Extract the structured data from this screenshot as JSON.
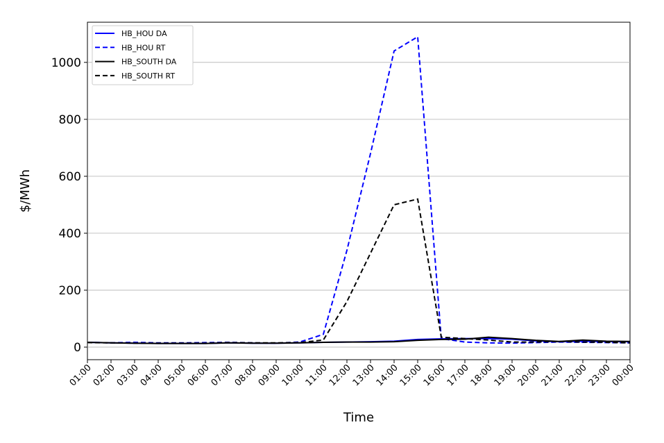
{
  "chart_data": {
    "type": "line",
    "x_label": "Time",
    "y_label": "$/MWh",
    "categories": [
      "01:00",
      "02:00",
      "03:00",
      "04:00",
      "05:00",
      "06:00",
      "07:00",
      "08:00",
      "09:00",
      "10:00",
      "11:00",
      "12:00",
      "13:00",
      "14:00",
      "15:00",
      "16:00",
      "17:00",
      "18:00",
      "19:00",
      "20:00",
      "21:00",
      "22:00",
      "23:00",
      "00:00"
    ],
    "series": [
      {
        "name": "HB_HOU DA",
        "color": "#0000ff",
        "style": "solid",
        "values": [
          17,
          15,
          14,
          13,
          13,
          13,
          15,
          14,
          14,
          15,
          17,
          18,
          19,
          21,
          27,
          29,
          30,
          30,
          28,
          22,
          19,
          21,
          20,
          19
        ]
      },
      {
        "name": "HB_HOU RT",
        "color": "#0000ff",
        "style": "dashed",
        "values": [
          17,
          15,
          17,
          15,
          15,
          16,
          17,
          15,
          14,
          18,
          45,
          340,
          680,
          1040,
          1090,
          30,
          18,
          15,
          14,
          16,
          18,
          17,
          16,
          15
        ]
      },
      {
        "name": "HB_SOUTH DA",
        "color": "#000000",
        "style": "solid",
        "values": [
          17,
          15,
          14,
          13,
          13,
          13,
          15,
          14,
          14,
          15,
          17,
          18,
          18,
          19,
          24,
          27,
          28,
          35,
          30,
          24,
          20,
          25,
          21,
          20
        ]
      },
      {
        "name": "HB_SOUTH RT",
        "color": "#000000",
        "style": "dashed",
        "values": [
          16,
          15,
          14,
          14,
          14,
          14,
          16,
          15,
          15,
          16,
          25,
          160,
          330,
          500,
          520,
          35,
          30,
          25,
          18,
          18,
          20,
          18,
          17,
          15
        ]
      }
    ],
    "ylim": [
      -44,
      1141
    ],
    "yticks": [
      0,
      200,
      400,
      600,
      800,
      1000
    ],
    "grid": true,
    "legend": "upper-left"
  }
}
